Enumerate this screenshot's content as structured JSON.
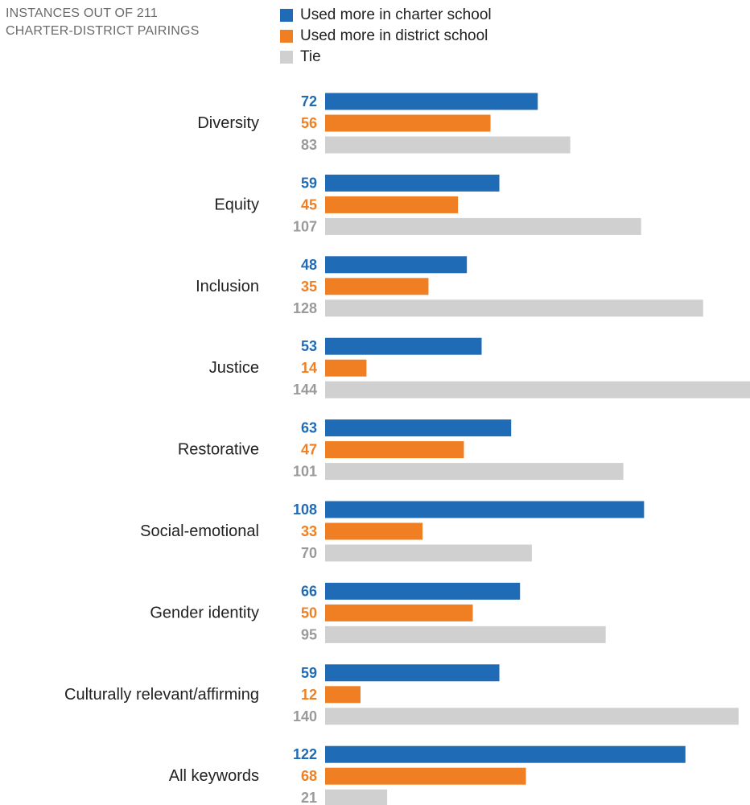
{
  "subtitle": [
    "INSTANCES OUT OF 211",
    "CHARTER-DISTRICT PAIRINGS"
  ],
  "colors": {
    "charter": "#1f6bb5",
    "district": "#ef7f22",
    "tie": "#d0d0d0",
    "category_label": "#222222",
    "tie_value_label": "#9a9a9a"
  },
  "chart_data": {
    "type": "bar",
    "orientation": "horizontal",
    "categories": [
      "Diversity",
      "Equity",
      "Inclusion",
      "Justice",
      "Restorative",
      "Social-emotional",
      "Gender identity",
      "Culturally relevant/affirming",
      "All keywords"
    ],
    "series": [
      {
        "name": "Used more in charter school",
        "values": [
          72,
          59,
          48,
          53,
          63,
          108,
          66,
          59,
          122
        ]
      },
      {
        "name": "Used more in district school",
        "values": [
          56,
          45,
          35,
          14,
          47,
          33,
          50,
          12,
          68
        ]
      },
      {
        "name": "Tie",
        "values": [
          83,
          107,
          128,
          144,
          101,
          70,
          95,
          140,
          21
        ]
      }
    ],
    "legend_position": "top",
    "data_labels": true,
    "grid": false,
    "xlim": [
      0,
      144
    ]
  }
}
